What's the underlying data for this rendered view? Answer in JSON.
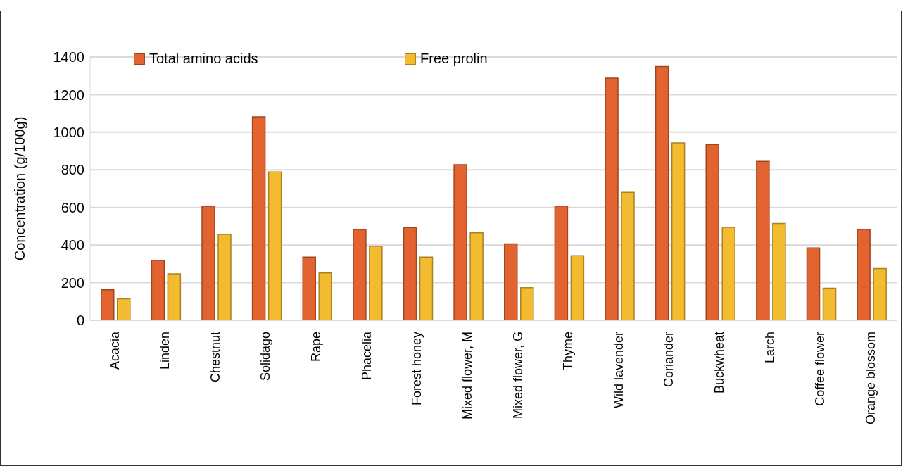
{
  "chart_data": {
    "type": "bar",
    "ylabel": "Concentration (g/100g)",
    "categories": [
      "Acacia",
      "Linden",
      "Chestnut",
      "Solidago",
      "Rape",
      "Phacelia",
      "Forest honey",
      "Mixed flower, M",
      "Mixed flower, G",
      "Thyme",
      "Wild lavender",
      "Coriander",
      "Buckwheat",
      "Larch",
      "Coffee flower",
      "Orange blossom"
    ],
    "series": [
      {
        "name": "Total amino acids",
        "color": "#e2632f",
        "values": [
          162,
          319,
          606,
          1082,
          336,
          483,
          493,
          827,
          406,
          607,
          1288,
          1349,
          935,
          845,
          385,
          483
        ]
      },
      {
        "name": "Free prolin",
        "color": "#f2bb30",
        "values": [
          114,
          247,
          457,
          789,
          252,
          394,
          336,
          465,
          173,
          343,
          680,
          943,
          494,
          515,
          170,
          275
        ]
      }
    ],
    "ylim": [
      0,
      1400
    ],
    "yticks": [
      0,
      200,
      400,
      600,
      800,
      1000,
      1200,
      1400
    ],
    "grid": "y",
    "legend": "top left"
  }
}
